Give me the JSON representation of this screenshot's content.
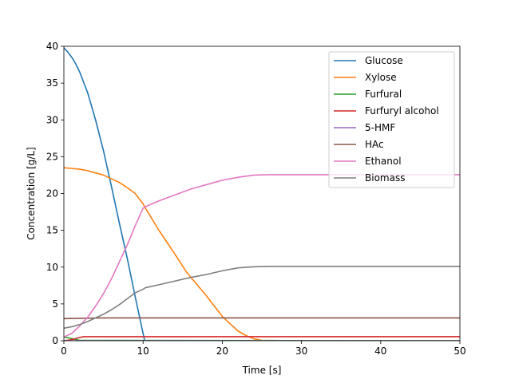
{
  "chart_data": {
    "type": "line",
    "title": "",
    "xlabel": "Time [s]",
    "ylabel": "Concentration [g/L]",
    "xlim": [
      0,
      50
    ],
    "ylim": [
      0,
      40
    ],
    "xticks": [
      0,
      10,
      20,
      30,
      40,
      50
    ],
    "yticks": [
      0,
      5,
      10,
      15,
      20,
      25,
      30,
      35,
      40
    ],
    "grid": false,
    "legend_position": "upper right",
    "series": [
      {
        "name": "Glucose",
        "color": "#1f77b4",
        "x": [
          0,
          0.5,
          1,
          1.5,
          2,
          3,
          4,
          5,
          6,
          7,
          8,
          9,
          9.5,
          10,
          10.2
        ],
        "y": [
          39.8,
          39.2,
          38.5,
          37.6,
          36.5,
          33.7,
          30.0,
          25.8,
          21.0,
          16.0,
          11.2,
          6.0,
          3.5,
          1.0,
          0.0
        ]
      },
      {
        "name": "Xylose",
        "color": "#ff7f0e",
        "x": [
          0,
          1,
          2,
          3,
          4,
          5,
          6,
          7,
          8,
          9,
          9.5,
          10,
          10.3,
          12,
          14,
          15.5,
          18,
          20,
          21,
          22,
          23,
          24,
          25,
          30,
          40,
          50
        ],
        "y": [
          23.5,
          23.4,
          23.3,
          23.1,
          22.8,
          22.5,
          22.0,
          21.5,
          20.8,
          20.0,
          19.3,
          18.6,
          18.0,
          15.0,
          11.8,
          9.3,
          6.1,
          3.3,
          2.3,
          1.3,
          0.7,
          0.25,
          0.05,
          0.0,
          0.0,
          0.0
        ]
      },
      {
        "name": "Furfural",
        "color": "#2ca02c",
        "x": [
          0,
          1,
          2,
          50
        ],
        "y": [
          0.5,
          0.3,
          0.05,
          0.0
        ]
      },
      {
        "name": "Furfuryl alcohol",
        "color": "#d62728",
        "x": [
          0,
          1,
          2,
          2.5,
          3,
          50
        ],
        "y": [
          0.0,
          0.15,
          0.45,
          0.55,
          0.55,
          0.55
        ]
      },
      {
        "name": "5-HMF",
        "color": "#9467bd",
        "x": [
          0,
          50
        ],
        "y": [
          0.0,
          0.0
        ]
      },
      {
        "name": "HAc",
        "color": "#8c564b",
        "x": [
          0,
          5,
          10,
          50
        ],
        "y": [
          3.0,
          3.1,
          3.1,
          3.1
        ]
      },
      {
        "name": "Ethanol",
        "color": "#e377c2",
        "x": [
          0,
          1,
          2,
          3,
          4,
          5,
          6,
          7,
          8,
          9,
          10,
          10.3,
          12,
          14,
          16,
          18,
          20,
          22,
          24,
          26,
          30,
          40,
          50
        ],
        "y": [
          0.5,
          1.0,
          2.0,
          3.2,
          4.7,
          6.4,
          8.4,
          10.7,
          13.0,
          15.6,
          18.0,
          18.2,
          19.0,
          19.8,
          20.6,
          21.2,
          21.8,
          22.2,
          22.5,
          22.55,
          22.55,
          22.55,
          22.55
        ]
      },
      {
        "name": "Biomass",
        "color": "#7f7f7f",
        "x": [
          0,
          1,
          2,
          3,
          4,
          5,
          6,
          7,
          8,
          9,
          10,
          10.3,
          12,
          14,
          16,
          18,
          20,
          22,
          24,
          26,
          30,
          40,
          50
        ],
        "y": [
          1.7,
          1.9,
          2.2,
          2.6,
          3.1,
          3.6,
          4.2,
          4.9,
          5.7,
          6.5,
          7.0,
          7.2,
          7.6,
          8.1,
          8.6,
          9.0,
          9.5,
          9.9,
          10.05,
          10.1,
          10.1,
          10.1,
          10.1
        ]
      }
    ]
  }
}
